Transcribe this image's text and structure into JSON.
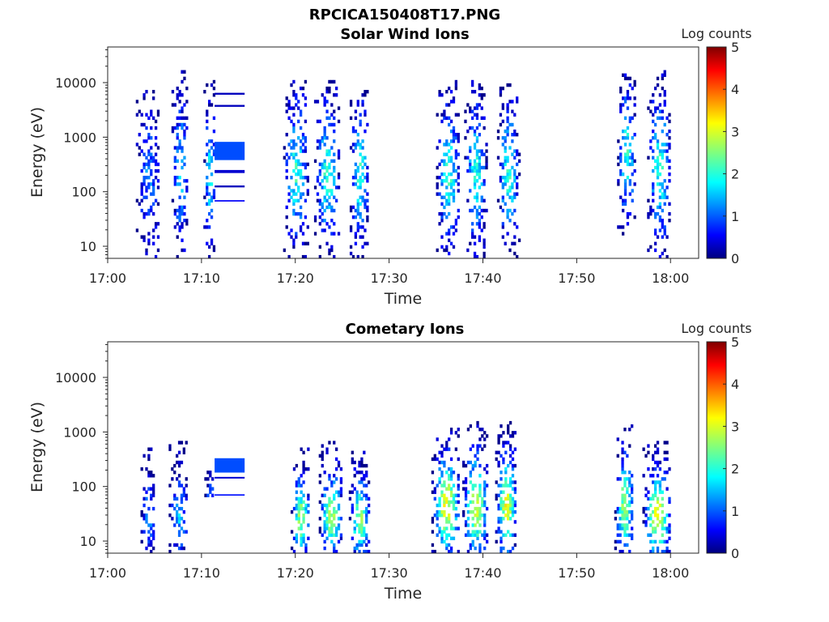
{
  "figure": {
    "title": "RPCICA150408T17.PNG"
  },
  "chart_data": [
    {
      "type": "heatmap",
      "title": "Solar Wind Ions",
      "xlabel": "Time",
      "ylabel": "Energy (eV)",
      "x_ticks": [
        "17:00",
        "17:10",
        "17:20",
        "17:30",
        "17:40",
        "17:50",
        "18:00"
      ],
      "x_range_min": [
        0,
        63
      ],
      "y_ticks": [
        "10",
        "100",
        "1000",
        "10000"
      ],
      "y_scale": "log",
      "y_range": [
        6,
        45000
      ],
      "colorbar": {
        "label": "Log counts",
        "ticks": [
          "0",
          "1",
          "2",
          "3",
          "4",
          "5"
        ],
        "range": [
          0,
          5
        ],
        "colormap": "jet"
      },
      "bursts": [
        {
          "t_start": 3.0,
          "t_end": 5.5,
          "e_low": 6,
          "e_high": 7000,
          "peak": 1.2,
          "density": 0.45
        },
        {
          "t_start": 6.8,
          "t_end": 8.5,
          "e_low": 6,
          "e_high": 15000,
          "peak": 1.5,
          "density": 0.45
        },
        {
          "t_start": 10.2,
          "t_end": 11.4,
          "e_low": 6,
          "e_high": 11000,
          "peak": 1.8,
          "density": 0.45
        },
        {
          "t_start": 18.7,
          "t_end": 21.3,
          "e_low": 6,
          "e_high": 10000,
          "peak": 2.0,
          "density": 0.45
        },
        {
          "t_start": 22.0,
          "t_end": 24.6,
          "e_low": 6,
          "e_high": 10000,
          "peak": 2.0,
          "density": 0.45
        },
        {
          "t_start": 25.8,
          "t_end": 27.8,
          "e_low": 6,
          "e_high": 11000,
          "peak": 2.0,
          "density": 0.45
        },
        {
          "t_start": 35.0,
          "t_end": 37.5,
          "e_low": 6,
          "e_high": 10000,
          "peak": 2.0,
          "density": 0.45
        },
        {
          "t_start": 38.0,
          "t_end": 40.3,
          "e_low": 6,
          "e_high": 10000,
          "peak": 2.0,
          "density": 0.45
        },
        {
          "t_start": 41.5,
          "t_end": 43.8,
          "e_low": 6,
          "e_high": 10000,
          "peak": 2.0,
          "density": 0.45
        },
        {
          "t_start": 54.3,
          "t_end": 56.2,
          "e_low": 15,
          "e_high": 20000,
          "peak": 2.0,
          "density": 0.45
        },
        {
          "t_start": 57.5,
          "t_end": 60.0,
          "e_low": 6,
          "e_high": 15000,
          "peak": 2.0,
          "density": 0.45
        }
      ],
      "bands": [
        {
          "t_start": 11.4,
          "t_end": 14.6,
          "e_low": 380,
          "e_high": 820,
          "value": 1.0
        },
        {
          "t_start": 11.4,
          "t_end": 14.6,
          "e_low": 3600,
          "e_high": 3900,
          "value": 0.3
        },
        {
          "t_start": 11.4,
          "t_end": 14.6,
          "e_low": 6000,
          "e_high": 6500,
          "value": 0.3
        },
        {
          "t_start": 11.4,
          "t_end": 14.6,
          "e_low": 220,
          "e_high": 250,
          "value": 0.4
        },
        {
          "t_start": 11.4,
          "t_end": 14.6,
          "e_low": 120,
          "e_high": 130,
          "value": 0.3
        },
        {
          "t_start": 11.4,
          "t_end": 14.6,
          "e_low": 66,
          "e_high": 70,
          "value": 0.6
        }
      ]
    },
    {
      "type": "heatmap",
      "title": "Cometary Ions",
      "xlabel": "Time",
      "ylabel": "Energy (eV)",
      "x_ticks": [
        "17:00",
        "17:10",
        "17:20",
        "17:30",
        "17:40",
        "17:50",
        "18:00"
      ],
      "x_range_min": [
        0,
        63
      ],
      "y_ticks": [
        "10",
        "100",
        "1000",
        "10000"
      ],
      "y_scale": "log",
      "y_range": [
        6,
        45000
      ],
      "colorbar": {
        "label": "Log counts",
        "ticks": [
          "0",
          "1",
          "2",
          "3",
          "4",
          "5"
        ],
        "range": [
          0,
          5
        ],
        "colormap": "jet"
      },
      "bursts": [
        {
          "t_start": 3.5,
          "t_end": 5.0,
          "e_low": 6,
          "e_high": 500,
          "peak": 1.3,
          "density": 0.5
        },
        {
          "t_start": 6.5,
          "t_end": 8.5,
          "e_low": 6,
          "e_high": 600,
          "peak": 1.5,
          "density": 0.5
        },
        {
          "t_start": 10.3,
          "t_end": 11.3,
          "e_low": 60,
          "e_high": 400,
          "peak": 1.0,
          "density": 0.5
        },
        {
          "t_start": 19.5,
          "t_end": 21.5,
          "e_low": 6,
          "e_high": 500,
          "peak": 2.6,
          "density": 0.6
        },
        {
          "t_start": 22.5,
          "t_end": 25.0,
          "e_low": 6,
          "e_high": 600,
          "peak": 2.6,
          "density": 0.6
        },
        {
          "t_start": 25.7,
          "t_end": 27.8,
          "e_low": 6,
          "e_high": 500,
          "peak": 2.6,
          "density": 0.6
        },
        {
          "t_start": 34.5,
          "t_end": 37.5,
          "e_low": 6,
          "e_high": 1500,
          "peak": 3.0,
          "density": 0.6
        },
        {
          "t_start": 37.8,
          "t_end": 40.5,
          "e_low": 6,
          "e_high": 1500,
          "peak": 3.0,
          "density": 0.6
        },
        {
          "t_start": 41.3,
          "t_end": 43.5,
          "e_low": 6,
          "e_high": 1500,
          "peak": 3.0,
          "density": 0.6
        },
        {
          "t_start": 54.0,
          "t_end": 56.0,
          "e_low": 6,
          "e_high": 1500,
          "peak": 2.6,
          "density": 0.6
        },
        {
          "t_start": 57.0,
          "t_end": 60.0,
          "e_low": 6,
          "e_high": 600,
          "peak": 3.0,
          "density": 0.6
        }
      ],
      "bands": [
        {
          "t_start": 11.4,
          "t_end": 14.6,
          "e_low": 180,
          "e_high": 330,
          "value": 1.0
        },
        {
          "t_start": 11.4,
          "t_end": 14.6,
          "e_low": 140,
          "e_high": 150,
          "value": 0.4
        },
        {
          "t_start": 11.4,
          "t_end": 14.6,
          "e_low": 68,
          "e_high": 72,
          "value": 0.7
        }
      ]
    }
  ]
}
